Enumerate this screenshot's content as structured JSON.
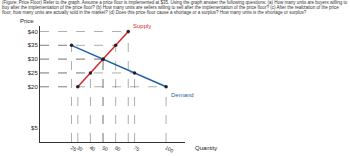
{
  "chart_data": {
    "type": "line",
    "title": "(Figure: Price Floor) Refer to the graph. Assume a price floor is implemented at $35. Using the graph answer the following questions: (a) How many units are buyers willing to buy after the implementation of the price floor? (b) How many units are sellers willing to sell after the implementation of the price floor? (c) After the realization of the price floor, how many units are actually sold in the market? (d) Does this price floor cause a shortage or a surplus? How many units is the shortage or surplus?",
    "x_label": "Quantity",
    "y_label": "Price",
    "marker": "circle",
    "series": [
      {
        "name": "Supply",
        "color": "#d9262c",
        "x": [
          30,
          40,
          50,
          60,
          70
        ],
        "values": [
          20,
          25,
          30,
          35,
          40
        ]
      },
      {
        "name": "Demand",
        "color": "#1f5fa8",
        "x": [
          25,
          50,
          75,
          100
        ],
        "values": [
          35,
          30,
          25,
          20
        ]
      }
    ],
    "xlim": [
      0,
      115
    ],
    "ylim": [
      0,
      42
    ],
    "xticks": [
      25,
      30,
      40,
      50,
      60,
      75,
      100
    ],
    "yticks": [
      {
        "value": 5,
        "label": "$5"
      },
      {
        "value": 20,
        "label": "$20"
      },
      {
        "value": 25,
        "label": "$25"
      },
      {
        "value": 30,
        "label": "$30"
      },
      {
        "value": 35,
        "label": "$35"
      },
      {
        "value": 40,
        "label": "$40"
      }
    ],
    "grid": false
  }
}
